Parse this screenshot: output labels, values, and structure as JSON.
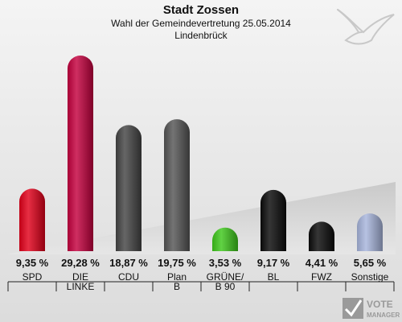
{
  "chart_data": {
    "type": "bar",
    "title": "Stadt Zossen",
    "subtitle": "Wahl der Gemeindevertretung 25.05.2014",
    "subtitle2": "Lindenbrück",
    "categories": [
      [
        "SPD"
      ],
      [
        "DIE",
        "LINKE"
      ],
      [
        "CDU"
      ],
      [
        "Plan",
        "B"
      ],
      [
        "GRÜNE/",
        "B 90"
      ],
      [
        "BL"
      ],
      [
        "FWZ"
      ],
      [
        "Sonstige"
      ]
    ],
    "values": [
      9.35,
      29.28,
      18.87,
      19.75,
      3.53,
      9.17,
      4.41,
      5.65
    ],
    "value_labels": [
      "9,35 %",
      "29,28 %",
      "18,87 %",
      "19,75 %",
      "3,53 %",
      "9,17 %",
      "4,41 %",
      "5,65 %"
    ],
    "colors": [
      "#e2001a",
      "#c4003e",
      "#444444",
      "#555555",
      "#3ec81b",
      "#0a0a0a",
      "#0a0a0a",
      "#a7b5dc"
    ],
    "ylim": [
      0,
      30
    ],
    "grid": false,
    "legend": "none"
  },
  "logo": {
    "line1": "VOTE",
    "line2": "MANAGER"
  }
}
